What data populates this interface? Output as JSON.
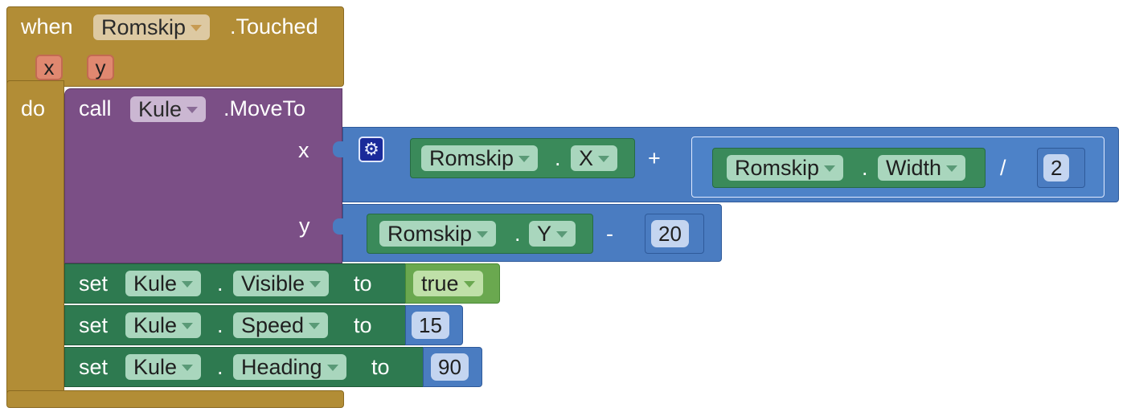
{
  "event_block": {
    "when_label": "when",
    "component": "Romskip",
    "event_name": ".Touched",
    "params": [
      "x",
      "y"
    ],
    "do_label": "do"
  },
  "moveto_block": {
    "call_label": "call",
    "component": "Kule",
    "method": ".MoveTo",
    "arg_x_label": "x",
    "arg_y_label": "y"
  },
  "x_expr": {
    "gear_icon": "gear-icon",
    "comp1": "Romskip",
    "dot1": ".",
    "prop1": "X",
    "plus": "+",
    "comp2": "Romskip",
    "dot2": ".",
    "prop2": "Width",
    "divide": "/",
    "divisor": "2"
  },
  "y_expr": {
    "comp": "Romskip",
    "dot": ".",
    "prop": "Y",
    "minus": "-",
    "value": "20"
  },
  "set_blocks": [
    {
      "set_label": "set",
      "component": "Kule",
      "dot": ".",
      "property": "Visible",
      "to_label": "to",
      "value": "true"
    },
    {
      "set_label": "set",
      "component": "Kule",
      "dot": ".",
      "property": "Speed",
      "to_label": "to",
      "value": "15"
    },
    {
      "set_label": "set",
      "component": "Kule",
      "dot": ".",
      "property": "Heading",
      "to_label": "to",
      "value": "90"
    }
  ],
  "colors": {
    "event": "#b28d36",
    "procedure": "#7b4f86",
    "math": "#4a7cc1",
    "component": "#2e7a50",
    "logic": "#6aa84f",
    "param": "#e08870"
  }
}
